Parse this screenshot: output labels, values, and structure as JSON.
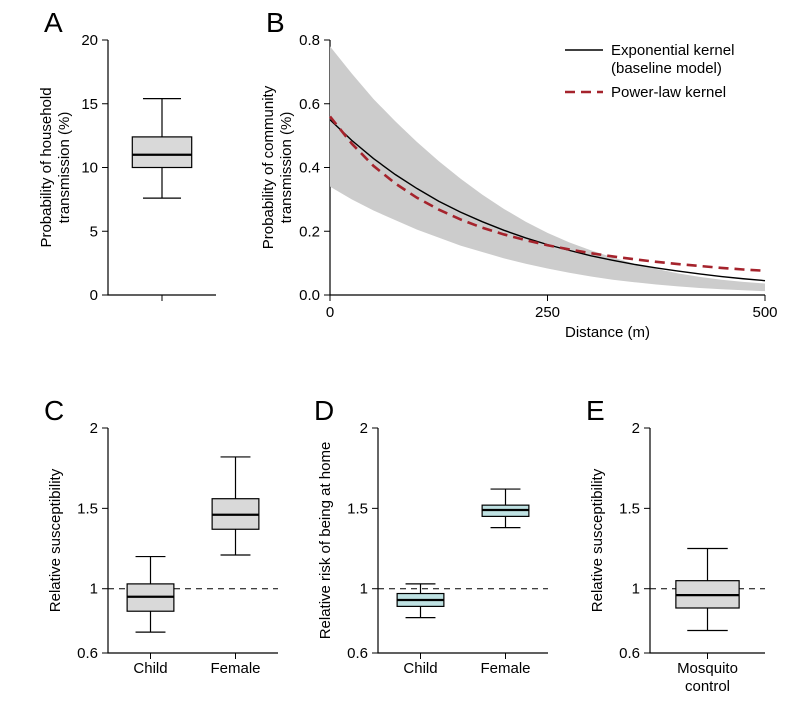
{
  "panels": {
    "A": {
      "label": "A",
      "type": "boxplot",
      "ylabel": "Probability of household\ntransmission (%)",
      "ylim": [
        0,
        20
      ],
      "ytick_step": 5,
      "box_color": "#d9d9d9",
      "categories": [
        ""
      ],
      "boxes": [
        {
          "whisker_low": 7.6,
          "q1": 10.0,
          "median": 11.0,
          "q3": 12.4,
          "whisker_high": 15.4
        }
      ],
      "label_fontsize": 15,
      "panel_label_fontsize": 28
    },
    "B": {
      "label": "B",
      "type": "line",
      "ylabel": "Probability of community\ntransmission (%)",
      "xlabel": "Distance (m)",
      "xlim": [
        0,
        500
      ],
      "xtick_step": 250,
      "ylim": [
        0,
        0.8
      ],
      "ytick_step": 0.2,
      "background_color": "#ffffff",
      "series": [
        {
          "name": "exponential_band",
          "kind": "band",
          "color": "#cccccc",
          "x": [
            0,
            25,
            50,
            75,
            100,
            125,
            150,
            175,
            200,
            225,
            250,
            275,
            300,
            325,
            350,
            375,
            400,
            425,
            450,
            475,
            500
          ],
          "y_low": [
            0.34,
            0.3,
            0.265,
            0.235,
            0.205,
            0.18,
            0.155,
            0.135,
            0.115,
            0.098,
            0.083,
            0.07,
            0.058,
            0.048,
            0.04,
            0.033,
            0.027,
            0.022,
            0.018,
            0.015,
            0.012
          ],
          "y_high": [
            0.78,
            0.695,
            0.615,
            0.545,
            0.48,
            0.42,
            0.365,
            0.315,
            0.27,
            0.23,
            0.195,
            0.165,
            0.14,
            0.118,
            0.098,
            0.082,
            0.068,
            0.057,
            0.048,
            0.041,
            0.036
          ]
        },
        {
          "name": "Exponential kernel\n(baseline model)",
          "kind": "line",
          "color": "#000000",
          "width": 1.4,
          "dash": "none",
          "x": [
            0,
            25,
            50,
            75,
            100,
            125,
            150,
            175,
            200,
            225,
            250,
            275,
            300,
            325,
            350,
            375,
            400,
            425,
            450,
            475,
            500
          ],
          "y": [
            0.55,
            0.485,
            0.428,
            0.378,
            0.334,
            0.294,
            0.26,
            0.23,
            0.203,
            0.179,
            0.158,
            0.14,
            0.123,
            0.109,
            0.096,
            0.085,
            0.075,
            0.066,
            0.058,
            0.051,
            0.045
          ]
        },
        {
          "name": "Power-law kernel",
          "kind": "line",
          "color": "#a5232c",
          "width": 2.6,
          "dash": "10 6",
          "x": [
            0,
            25,
            50,
            75,
            100,
            125,
            150,
            175,
            200,
            225,
            250,
            275,
            300,
            325,
            350,
            375,
            400,
            425,
            450,
            475,
            500
          ],
          "y": [
            0.56,
            0.475,
            0.405,
            0.35,
            0.305,
            0.268,
            0.237,
            0.211,
            0.19,
            0.172,
            0.156,
            0.143,
            0.131,
            0.121,
            0.112,
            0.104,
            0.097,
            0.091,
            0.085,
            0.08,
            0.076
          ]
        }
      ],
      "legend": {
        "entries": [
          {
            "label": "Exponential kernel",
            "sub": "(baseline model)",
            "color": "#000000",
            "dash": "none",
            "width": 1.4
          },
          {
            "label": "Power-law kernel",
            "color": "#a5232c",
            "dash": "10 6",
            "width": 2.6
          }
        ]
      },
      "label_fontsize": 15
    },
    "C": {
      "label": "C",
      "type": "boxplot",
      "ylabel": "Relative susceptibility",
      "ylim": [
        0.6,
        2.0
      ],
      "yticks": [
        0.6,
        1.0,
        1.5,
        2.0
      ],
      "ref_line": 1.0,
      "box_color": "#d9d9d9",
      "categories": [
        "Child",
        "Female"
      ],
      "boxes": [
        {
          "whisker_low": 0.73,
          "q1": 0.86,
          "median": 0.95,
          "q3": 1.03,
          "whisker_high": 1.2
        },
        {
          "whisker_low": 1.21,
          "q1": 1.37,
          "median": 1.46,
          "q3": 1.56,
          "whisker_high": 1.82
        }
      ],
      "label_fontsize": 15
    },
    "D": {
      "label": "D",
      "type": "boxplot",
      "ylabel": "Relative risk of being at home",
      "ylim": [
        0.6,
        2.0
      ],
      "yticks": [
        0.6,
        1.0,
        1.5,
        2.0
      ],
      "ref_line": 1.0,
      "box_color": "#bfe2e3",
      "categories": [
        "Child",
        "Female"
      ],
      "boxes": [
        {
          "whisker_low": 0.82,
          "q1": 0.89,
          "median": 0.93,
          "q3": 0.97,
          "whisker_high": 1.03
        },
        {
          "whisker_low": 1.38,
          "q1": 1.45,
          "median": 1.49,
          "q3": 1.52,
          "whisker_high": 1.62
        }
      ],
      "label_fontsize": 15
    },
    "E": {
      "label": "E",
      "type": "boxplot",
      "ylabel": "Relative susceptibility",
      "ylim": [
        0.6,
        2.0
      ],
      "yticks": [
        0.6,
        1.0,
        1.5,
        2.0
      ],
      "ref_line": 1.0,
      "box_color": "#d9d9d9",
      "categories": [
        "Mosquito\ncontrol"
      ],
      "boxes": [
        {
          "whisker_low": 0.74,
          "q1": 0.88,
          "median": 0.96,
          "q3": 1.05,
          "whisker_high": 1.25
        }
      ],
      "label_fontsize": 15
    }
  }
}
